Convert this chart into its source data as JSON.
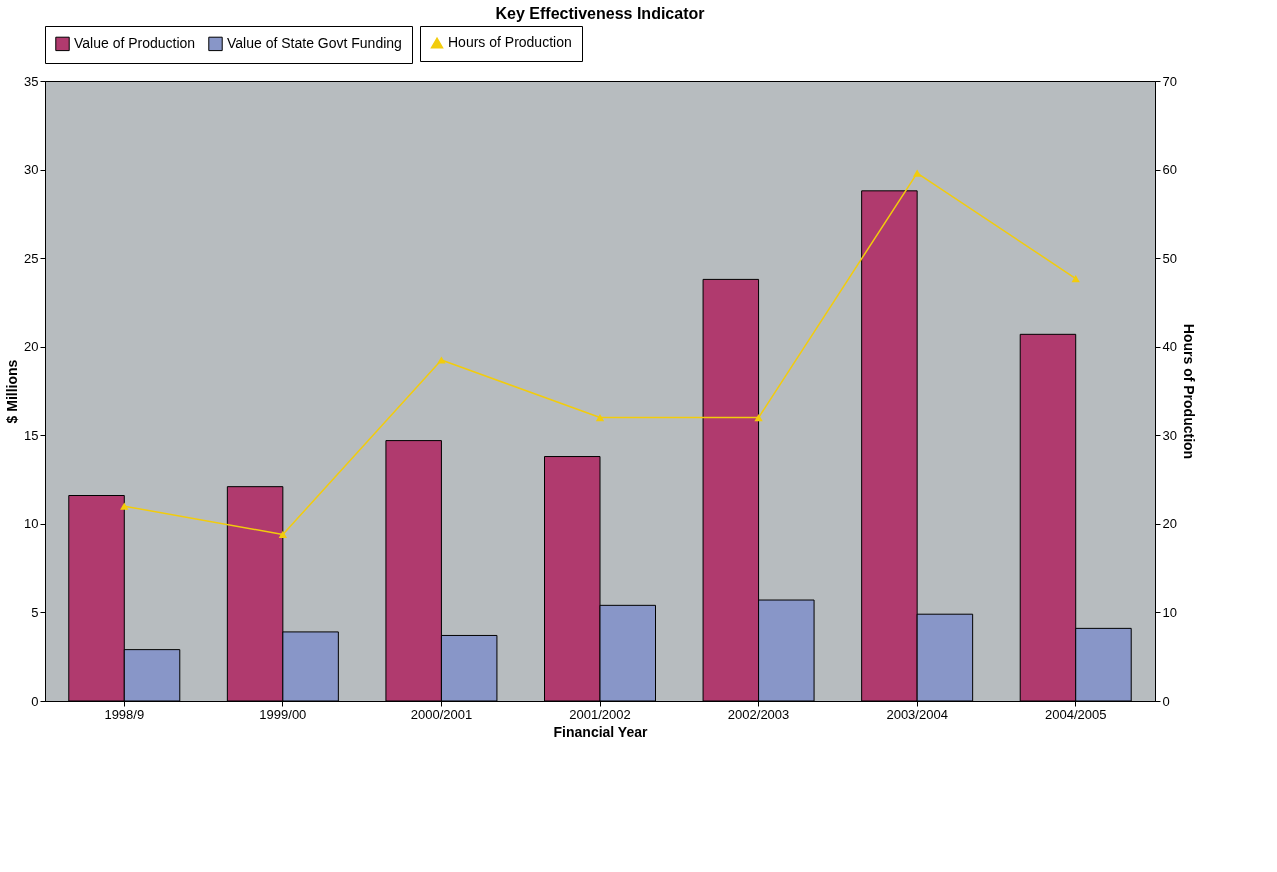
{
  "chart_data": {
    "type": "bar",
    "title": "Key Effectiveness Indicator",
    "xlabel": "Financial Year",
    "ylabel": "$ Millions",
    "y2label": "Hours of Production",
    "categories": [
      "1998/9",
      "1999/00",
      "2000/2001",
      "2001/2002",
      "2002/2003",
      "2003/2004",
      "2004/2005"
    ],
    "series": [
      {
        "name": "Value of Production",
        "color": "#b03a6e",
        "values": [
          11.6,
          12.1,
          14.7,
          13.8,
          23.8,
          28.8,
          20.7
        ]
      },
      {
        "name": "Value of State Govt Funding",
        "color": "#8896c8",
        "values": [
          2.9,
          3.9,
          3.7,
          5.4,
          5.7,
          4.9,
          4.1
        ]
      },
      {
        "name": "Hours of Production",
        "color": "#f2cc0c",
        "type": "line",
        "axis": "y2",
        "marker": "triangle",
        "values": [
          22.0,
          18.8,
          38.5,
          32.0,
          32.0,
          59.6,
          47.7
        ]
      }
    ],
    "ylim": [
      0,
      35
    ],
    "yticks": [
      0,
      5,
      10,
      15,
      20,
      25,
      30,
      35
    ],
    "y2lim": [
      0,
      70
    ],
    "y2ticks": [
      0,
      10,
      20,
      30,
      40,
      50,
      60,
      70
    ],
    "grid": false,
    "legend": "top"
  }
}
